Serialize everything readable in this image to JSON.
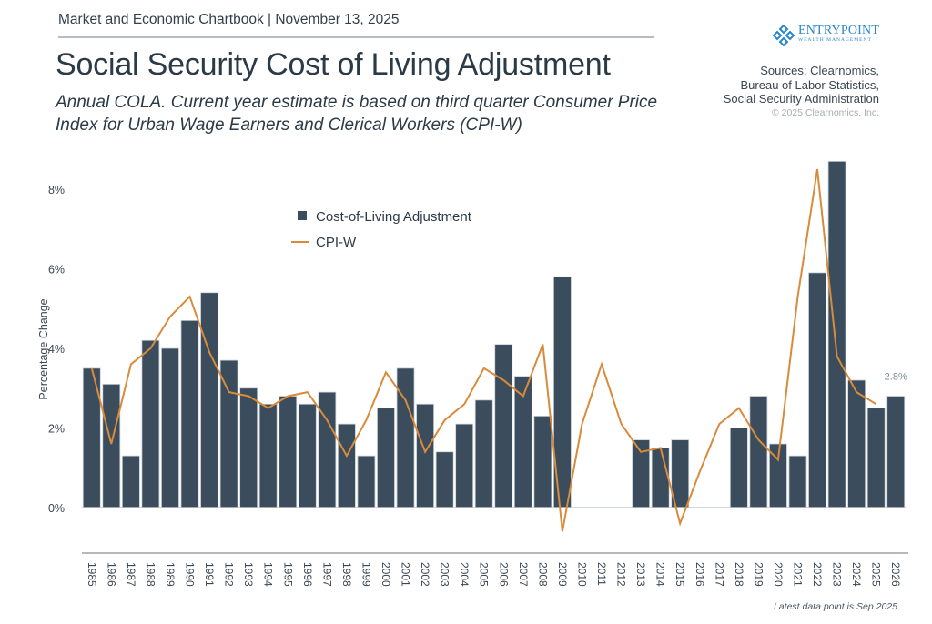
{
  "header": {
    "kicker": "Market and Economic Chartbook | November 13, 2025",
    "title": "Social Security Cost of Living Adjustment",
    "subtitle_line1": "Annual COLA. Current year estimate is based on third quarter Consumer Price",
    "subtitle_line2": "Index for Urban Wage Earners and Clerical Workers (CPI-W)"
  },
  "logo": {
    "icon": "diamond-cluster-icon",
    "name": "EntryPoint",
    "tagline": "WEALTH MANAGEMENT",
    "color": "#2a86c9"
  },
  "sources": {
    "line1": "Sources: Clearnomics,",
    "line2": "Bureau of Labor Statistics,",
    "line3": "Social Security Administration",
    "copyright": "© 2025 Clearnomics, Inc."
  },
  "footnote": "Latest data point is Sep 2025",
  "chart_data": {
    "type": "bar",
    "title": "Social Security Cost of Living Adjustment",
    "xlabel": "",
    "ylabel": "Percentage Change",
    "ylim": [
      -1.2,
      8.8
    ],
    "yticks": [
      0,
      2,
      4,
      6,
      8
    ],
    "ytick_labels": [
      "0%",
      "2%",
      "4%",
      "6%",
      "8%"
    ],
    "grid": false,
    "legend_position": "top-center",
    "categories": [
      "1985",
      "1986",
      "1987",
      "1988",
      "1989",
      "1990",
      "1991",
      "1992",
      "1993",
      "1994",
      "1995",
      "1996",
      "1997",
      "1998",
      "1999",
      "2000",
      "2001",
      "2002",
      "2003",
      "2004",
      "2005",
      "2006",
      "2007",
      "2008",
      "2009",
      "2010",
      "2011",
      "2012",
      "2013",
      "2014",
      "2015",
      "2016",
      "2017",
      "2018",
      "2019",
      "2020",
      "2021",
      "2022",
      "2023",
      "2024",
      "2025",
      "2026"
    ],
    "series": [
      {
        "name": "Cost-of-Living Adjustment",
        "type": "bar",
        "color": "#3b4d5c",
        "values": [
          3.5,
          3.1,
          1.3,
          4.2,
          4.0,
          4.7,
          5.4,
          3.7,
          3.0,
          2.6,
          2.8,
          2.6,
          2.9,
          2.1,
          1.3,
          2.5,
          3.5,
          2.6,
          1.4,
          2.1,
          2.7,
          4.1,
          3.3,
          2.3,
          5.8,
          0,
          0,
          0,
          1.7,
          1.5,
          1.7,
          0,
          0,
          2.0,
          2.8,
          1.6,
          1.3,
          5.9,
          8.7,
          3.2,
          2.5,
          2.8
        ]
      },
      {
        "name": "CPI-W",
        "type": "line",
        "color": "#d98a3a",
        "values": [
          3.5,
          1.6,
          3.6,
          4.0,
          4.8,
          5.3,
          3.9,
          2.9,
          2.8,
          2.5,
          2.8,
          2.9,
          2.2,
          1.3,
          2.2,
          3.4,
          2.7,
          1.4,
          2.2,
          2.6,
          3.5,
          3.2,
          2.8,
          4.1,
          -0.6,
          2.1,
          3.6,
          2.1,
          1.4,
          1.5,
          -0.4,
          0.9,
          2.1,
          2.5,
          1.7,
          1.2,
          5.3,
          8.5,
          3.8,
          2.9,
          2.6,
          null
        ]
      }
    ],
    "annotations": [
      {
        "category": "2026",
        "text": "2.8%"
      }
    ]
  }
}
